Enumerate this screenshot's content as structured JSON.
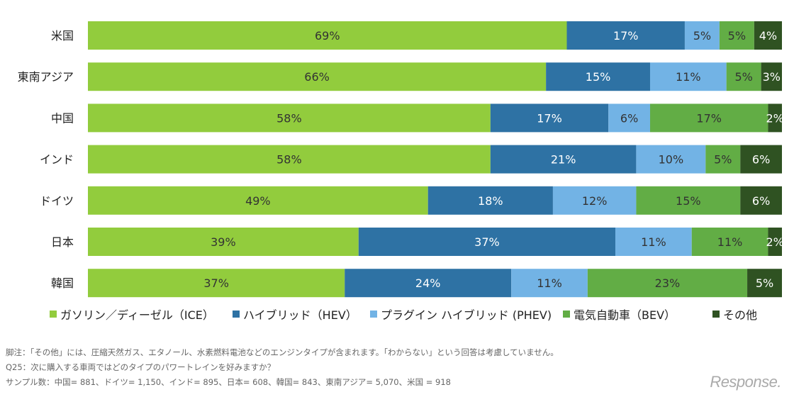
{
  "chart_data": {
    "type": "bar",
    "orientation": "horizontal",
    "stacked": true,
    "categories": [
      "米国",
      "東南アジア",
      "中国",
      "インド",
      "ドイツ",
      "日本",
      "韓国"
    ],
    "series": [
      {
        "name": "ガソリン／ディーゼル（ICE）",
        "color": "#92cc3d",
        "label_color": "#333333",
        "values": [
          69,
          66,
          58,
          58,
          49,
          39,
          37
        ]
      },
      {
        "name": "ハイブリッド（HEV）",
        "color": "#2e72a4",
        "label_color": "#ffffff",
        "values": [
          17,
          15,
          17,
          21,
          18,
          37,
          24
        ]
      },
      {
        "name": "プラグイン ハイブリッド (PHEV)",
        "color": "#72b3e5",
        "label_color": "#333333",
        "values": [
          5,
          11,
          6,
          10,
          12,
          11,
          11
        ]
      },
      {
        "name": "電気自動車（BEV）",
        "color": "#62ad45",
        "label_color": "#333333",
        "values": [
          5,
          5,
          17,
          5,
          15,
          11,
          23
        ]
      },
      {
        "name": "その他",
        "color": "#2f5222",
        "label_color": "#ffffff",
        "values": [
          4,
          3,
          2,
          6,
          6,
          2,
          5
        ]
      }
    ],
    "value_format": "%",
    "xlim": [
      0,
      100
    ],
    "grid": false,
    "legend": "bottom"
  },
  "footnotes": [
    "脚注：「その他」には、圧縮天然ガス、エタノール、水素燃料電池などのエンジンタイプが含まれます。「わからない」という回答は考慮していません。",
    "Q25：次に購入する車両ではどのタイプのパワートレインを好みますか？",
    "サンプル数：中国= 881、ドイツ= 1,150、インド= 895、日本= 608、韓国= 843、東南アジア= 5,070、米国 = 918"
  ],
  "watermark": "Response."
}
